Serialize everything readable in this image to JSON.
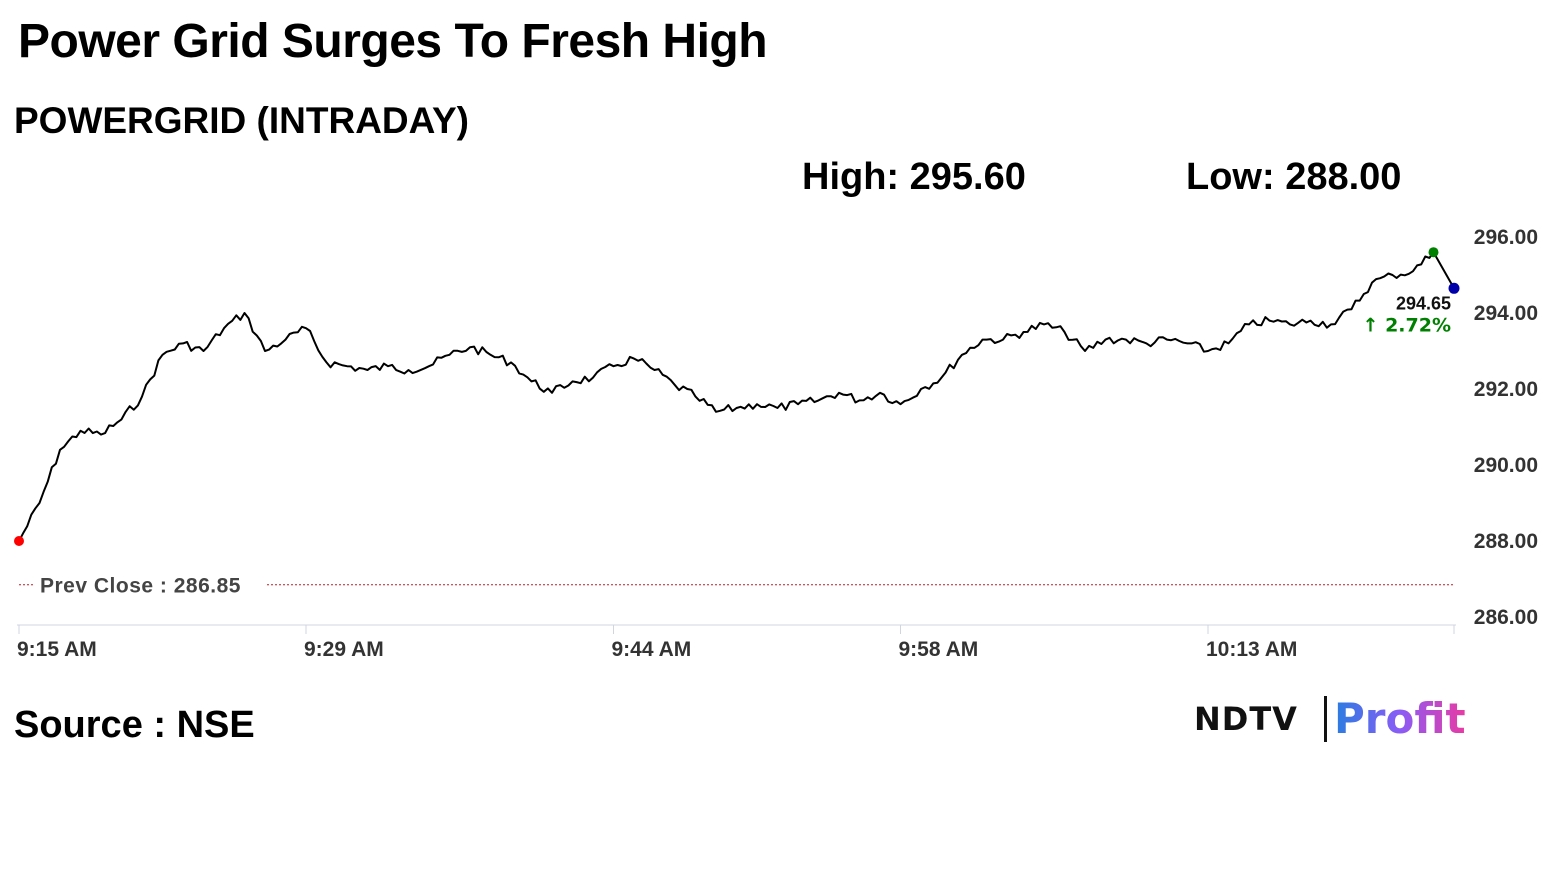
{
  "header": {
    "title": "Power Grid Surges To Fresh High",
    "subtitle": "POWERGRID (INTRADAY)",
    "high_label": "High: 295.60",
    "low_label": "Low: 288.00"
  },
  "footer": {
    "source": "Source : NSE",
    "brand_left": "NDTV",
    "brand_right": "Profit"
  },
  "colors": {
    "line": "#000000",
    "start_marker": "#ff0000",
    "high_marker": "#008000",
    "last_marker": "#0000aa",
    "change_up": "#008000",
    "prev_close_line": "#b22222"
  },
  "chart_data": {
    "type": "line",
    "title": "POWERGRID (INTRADAY)",
    "xlabel": "",
    "ylabel": "",
    "x_ticks": [
      "9:15 AM",
      "9:29 AM",
      "9:44 AM",
      "9:58 AM",
      "10:13 AM"
    ],
    "y_ticks": [
      "296.00",
      "294.00",
      "292.00",
      "290.00",
      "288.00",
      "286.00"
    ],
    "ylim": [
      286,
      296
    ],
    "xlim": [
      "9:15",
      "10:25"
    ],
    "grid": false,
    "prev_close": 286.85,
    "prev_close_label": "Prev Close : 286.85",
    "last_price": "294.65",
    "change_pct": "2.72%",
    "change_arrow": "↑",
    "high": 295.6,
    "low": 288.0,
    "series": [
      {
        "points": [
          [
            "9:15",
            288.0
          ],
          [
            "9:16",
            289.0
          ],
          [
            "9:17",
            290.4
          ],
          [
            "9:18",
            290.9
          ],
          [
            "9:19",
            290.8
          ],
          [
            "9:20",
            291.2
          ],
          [
            "9:21",
            291.8
          ],
          [
            "9:22",
            292.9
          ],
          [
            "9:23",
            293.2
          ],
          [
            "9:24",
            293.0
          ],
          [
            "9:25",
            293.6
          ],
          [
            "9:26",
            294.0
          ],
          [
            "9:27",
            293.0
          ],
          [
            "9:28",
            293.3
          ],
          [
            "9:29",
            293.6
          ],
          [
            "9:30",
            292.7
          ],
          [
            "9:31",
            292.6
          ],
          [
            "9:32",
            292.5
          ],
          [
            "9:33",
            292.6
          ],
          [
            "9:34",
            292.5
          ],
          [
            "9:35",
            292.6
          ],
          [
            "9:36",
            292.9
          ],
          [
            "9:37",
            293.1
          ],
          [
            "9:38",
            292.9
          ],
          [
            "9:39",
            292.7
          ],
          [
            "9:40",
            292.2
          ],
          [
            "9:41",
            291.9
          ],
          [
            "9:42",
            292.2
          ],
          [
            "9:43",
            292.3
          ],
          [
            "9:44",
            292.6
          ],
          [
            "9:45",
            292.8
          ],
          [
            "9:46",
            292.5
          ],
          [
            "9:47",
            292.1
          ],
          [
            "9:48",
            291.8
          ],
          [
            "9:49",
            291.4
          ],
          [
            "9:50",
            291.5
          ],
          [
            "9:51",
            291.6
          ],
          [
            "9:52",
            291.5
          ],
          [
            "9:53",
            291.6
          ],
          [
            "9:54",
            291.7
          ],
          [
            "9:55",
            291.9
          ],
          [
            "9:56",
            291.7
          ],
          [
            "9:57",
            291.9
          ],
          [
            "9:58",
            291.6
          ],
          [
            "9:59",
            292.0
          ],
          [
            "10:00",
            292.3
          ],
          [
            "10:01",
            292.9
          ],
          [
            "10:02",
            293.3
          ],
          [
            "10:03",
            293.3
          ],
          [
            "10:04",
            293.5
          ],
          [
            "10:05",
            293.7
          ],
          [
            "10:06",
            293.5
          ],
          [
            "10:07",
            293.0
          ],
          [
            "10:08",
            293.3
          ],
          [
            "10:09",
            293.3
          ],
          [
            "10:10",
            293.2
          ],
          [
            "10:11",
            293.3
          ],
          [
            "10:12",
            293.2
          ],
          [
            "10:13",
            293.0
          ],
          [
            "10:14",
            293.2
          ],
          [
            "10:15",
            293.7
          ],
          [
            "10:16",
            293.8
          ],
          [
            "10:17",
            293.7
          ],
          [
            "10:18",
            293.8
          ],
          [
            "10:19",
            293.7
          ],
          [
            "10:20",
            294.1
          ],
          [
            "10:21",
            294.8
          ],
          [
            "10:22",
            295.0
          ],
          [
            "10:23",
            295.1
          ],
          [
            "10:24",
            295.6
          ],
          [
            "10:25",
            294.65
          ]
        ]
      }
    ]
  }
}
